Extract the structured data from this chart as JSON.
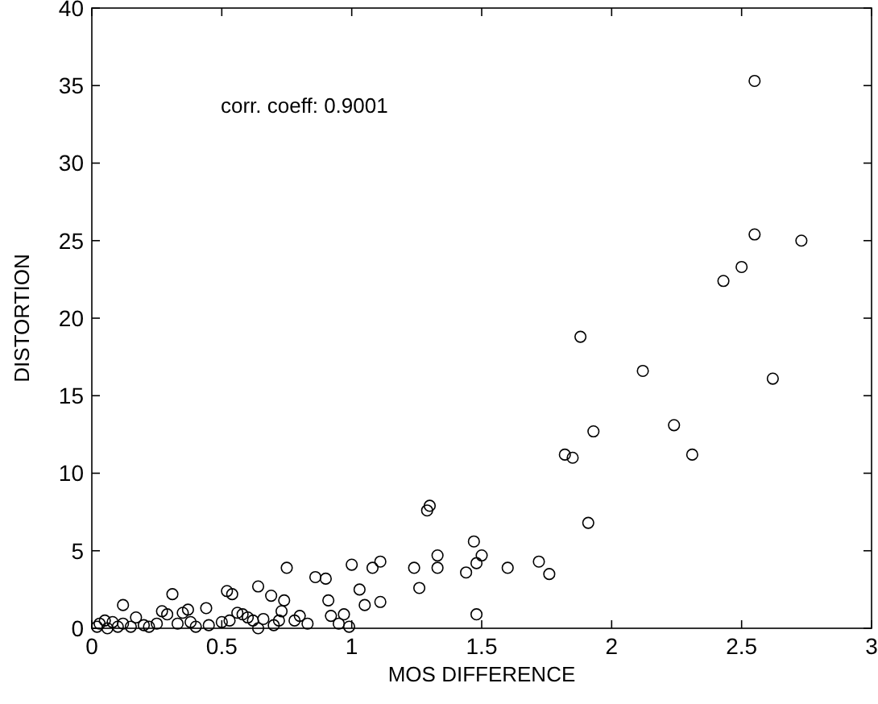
{
  "chart_data": {
    "type": "scatter",
    "xlabel": "MOS DIFFERENCE",
    "ylabel": "DISTORTION",
    "annotations": [
      "corr. coeff: 0.9001"
    ],
    "xlim": [
      0,
      3
    ],
    "ylim": [
      0,
      40
    ],
    "xticks": [
      0,
      0.5,
      1,
      1.5,
      2,
      2.5,
      3
    ],
    "yticks": [
      0,
      5,
      10,
      15,
      20,
      25,
      30,
      35,
      40
    ],
    "grid": false,
    "marker": "circle",
    "series": [
      {
        "color": "#000000",
        "x": [
          2.55,
          2.55,
          2.73,
          2.43,
          2.5,
          2.62,
          1.88,
          2.12,
          2.24,
          2.31,
          1.82,
          1.85,
          1.93,
          1.91,
          1.3,
          1.29,
          1.33,
          1.33,
          1.24,
          1.26,
          1.47,
          1.5,
          1.48,
          1.44,
          1.6,
          1.72,
          1.76,
          1.48,
          1.11,
          1.08,
          1.0,
          1.11,
          1.03,
          1.05,
          0.97,
          0.91,
          0.9,
          0.86,
          0.75,
          0.69,
          0.74,
          0.64,
          0.52,
          0.54,
          0.31,
          0.12,
          0.17,
          0.27,
          0.29,
          0.35,
          0.37,
          0.44,
          0.5,
          0.56,
          0.6,
          0.62,
          0.58,
          0.66,
          0.72,
          0.78,
          0.8,
          0.95,
          0.99,
          0.4,
          0.45,
          0.53,
          0.2,
          0.03,
          0.05,
          0.08,
          0.1,
          0.15,
          0.22,
          0.25,
          0.33,
          0.38,
          0.64,
          0.7,
          0.83,
          0.02,
          0.06,
          0.12,
          0.92,
          0.73
        ],
        "values": [
          35.3,
          25.4,
          25.0,
          22.4,
          23.3,
          16.1,
          18.8,
          16.6,
          13.1,
          11.2,
          11.2,
          11.0,
          12.7,
          6.8,
          7.9,
          7.6,
          4.7,
          3.9,
          3.9,
          2.6,
          5.6,
          4.7,
          4.2,
          3.6,
          3.9,
          4.3,
          3.5,
          0.9,
          4.3,
          3.9,
          4.1,
          1.7,
          2.5,
          1.5,
          0.9,
          1.8,
          3.2,
          3.3,
          3.9,
          2.1,
          1.8,
          2.7,
          2.4,
          2.2,
          2.2,
          1.5,
          0.7,
          1.1,
          0.9,
          1.0,
          1.2,
          1.3,
          0.4,
          1.0,
          0.7,
          0.5,
          0.9,
          0.6,
          0.5,
          0.5,
          0.8,
          0.3,
          0.1,
          0.1,
          0.2,
          0.5,
          0.2,
          0.3,
          0.5,
          0.4,
          0.1,
          0.1,
          0.1,
          0.3,
          0.3,
          0.4,
          0.0,
          0.2,
          0.3,
          0.1,
          0.0,
          0.3,
          0.8,
          1.1
        ]
      }
    ]
  }
}
